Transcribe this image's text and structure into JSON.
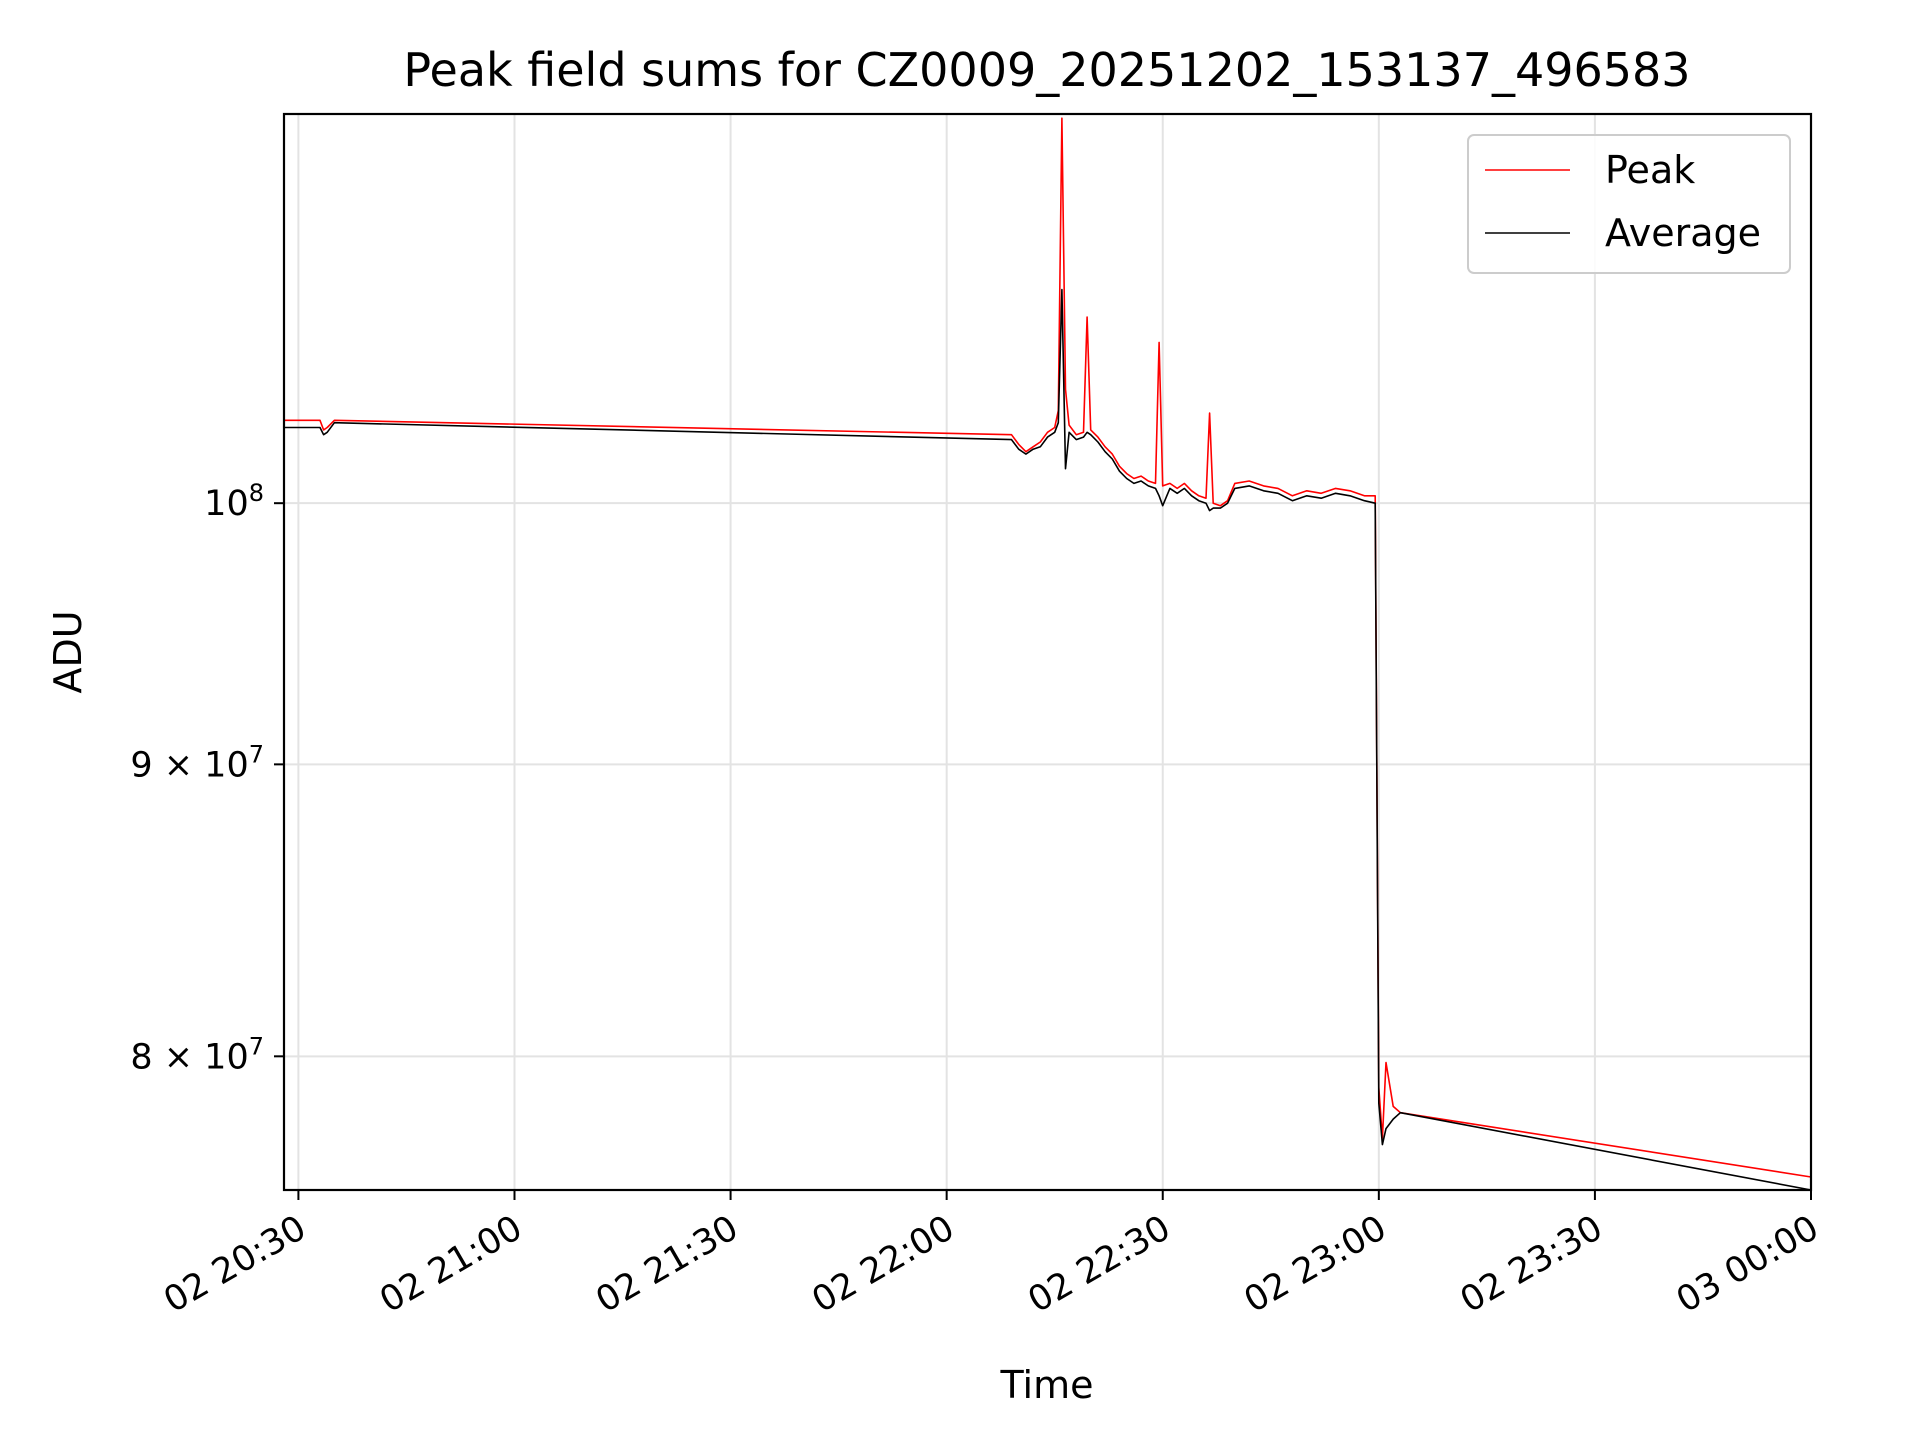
{
  "chart_data": {
    "type": "line",
    "title": "Peak field sums for CZ0009_20251202_153137_496583",
    "xlabel": "Time",
    "ylabel": "ADU",
    "yscale": "log",
    "grid": true,
    "legend_position": "top-right",
    "xlim": [
      "2025-12-02 20:28",
      "2025-12-03 00:00"
    ],
    "ylim": [
      75800000,
      117000000
    ],
    "x_ticks": [
      {
        "t": "2025-12-02 20:30",
        "label": "02 20:30"
      },
      {
        "t": "2025-12-02 21:00",
        "label": "02 21:00"
      },
      {
        "t": "2025-12-02 21:30",
        "label": "02 21:30"
      },
      {
        "t": "2025-12-02 22:00",
        "label": "02 22:00"
      },
      {
        "t": "2025-12-02 22:30",
        "label": "02 22:30"
      },
      {
        "t": "2025-12-02 23:00",
        "label": "02 23:00"
      },
      {
        "t": "2025-12-02 23:30",
        "label": "02 23:30"
      },
      {
        "t": "2025-12-03 00:00",
        "label": "03 00:00"
      }
    ],
    "y_ticks": [
      {
        "value": 100000000,
        "base": "10",
        "exp": "8"
      },
      {
        "value": 90000000,
        "base": "9 × 10",
        "exp": "7"
      },
      {
        "value": 80000000,
        "base": "8 × 10",
        "exp": "7"
      }
    ],
    "series": [
      {
        "name": "Peak",
        "color": "#ff0000",
        "points": [
          [
            "2025-12-02 20:28",
            103400000
          ],
          [
            "2025-12-02 20:33",
            103400000
          ],
          [
            "2025-12-02 20:33:30",
            103000000
          ],
          [
            "2025-12-02 20:34",
            103100000
          ],
          [
            "2025-12-02 20:35",
            103400000
          ],
          [
            "2025-12-02 22:09",
            102800000
          ],
          [
            "2025-12-02 22:10",
            102400000
          ],
          [
            "2025-12-02 22:11",
            102100000
          ],
          [
            "2025-12-02 22:12",
            102300000
          ],
          [
            "2025-12-02 22:13",
            102500000
          ],
          [
            "2025-12-02 22:14",
            102900000
          ],
          [
            "2025-12-02 22:15",
            103100000
          ],
          [
            "2025-12-02 22:15:30",
            103800000
          ],
          [
            "2025-12-02 22:16",
            116800000
          ],
          [
            "2025-12-02 22:16:30",
            104700000
          ],
          [
            "2025-12-02 22:17",
            103200000
          ],
          [
            "2025-12-02 22:18",
            102800000
          ],
          [
            "2025-12-02 22:19",
            102900000
          ],
          [
            "2025-12-02 22:19:30",
            107800000
          ],
          [
            "2025-12-02 22:20",
            103000000
          ],
          [
            "2025-12-02 22:21",
            102700000
          ],
          [
            "2025-12-02 22:22",
            102300000
          ],
          [
            "2025-12-02 22:23",
            102000000
          ],
          [
            "2025-12-02 22:24",
            101500000
          ],
          [
            "2025-12-02 22:25",
            101200000
          ],
          [
            "2025-12-02 22:26",
            101000000
          ],
          [
            "2025-12-02 22:27",
            101100000
          ],
          [
            "2025-12-02 22:28",
            100900000
          ],
          [
            "2025-12-02 22:29",
            100800000
          ],
          [
            "2025-12-02 22:29:30",
            106700000
          ],
          [
            "2025-12-02 22:30",
            100700000
          ],
          [
            "2025-12-02 22:31",
            100800000
          ],
          [
            "2025-12-02 22:32",
            100600000
          ],
          [
            "2025-12-02 22:33",
            100800000
          ],
          [
            "2025-12-02 22:34",
            100500000
          ],
          [
            "2025-12-02 22:35",
            100300000
          ],
          [
            "2025-12-02 22:36",
            100200000
          ],
          [
            "2025-12-02 22:36:30",
            103700000
          ],
          [
            "2025-12-02 22:37",
            100000000
          ],
          [
            "2025-12-02 22:38",
            99900000
          ],
          [
            "2025-12-02 22:39",
            100100000
          ],
          [
            "2025-12-02 22:40",
            100800000
          ],
          [
            "2025-12-02 22:42",
            100900000
          ],
          [
            "2025-12-02 22:44",
            100700000
          ],
          [
            "2025-12-02 22:46",
            100600000
          ],
          [
            "2025-12-02 22:48",
            100300000
          ],
          [
            "2025-12-02 22:50",
            100500000
          ],
          [
            "2025-12-02 22:52",
            100400000
          ],
          [
            "2025-12-02 22:54",
            100600000
          ],
          [
            "2025-12-02 22:56",
            100500000
          ],
          [
            "2025-12-02 22:58",
            100300000
          ],
          [
            "2025-12-02 22:59:30",
            100300000
          ],
          [
            "2025-12-02 23:00",
            79000000
          ],
          [
            "2025-12-02 23:00:30",
            77400000
          ],
          [
            "2025-12-02 23:01",
            79800000
          ],
          [
            "2025-12-02 23:02",
            78400000
          ],
          [
            "2025-12-02 23:03",
            78200000
          ],
          [
            "2025-12-03 00:00",
            76200000
          ]
        ]
      },
      {
        "name": "Average",
        "color": "#000000",
        "points": [
          [
            "2025-12-02 20:28",
            103100000
          ],
          [
            "2025-12-02 20:33",
            103100000
          ],
          [
            "2025-12-02 20:33:30",
            102800000
          ],
          [
            "2025-12-02 20:34",
            102900000
          ],
          [
            "2025-12-02 20:35",
            103300000
          ],
          [
            "2025-12-02 22:09",
            102600000
          ],
          [
            "2025-12-02 22:10",
            102200000
          ],
          [
            "2025-12-02 22:11",
            102000000
          ],
          [
            "2025-12-02 22:12",
            102200000
          ],
          [
            "2025-12-02 22:13",
            102300000
          ],
          [
            "2025-12-02 22:14",
            102700000
          ],
          [
            "2025-12-02 22:15",
            102900000
          ],
          [
            "2025-12-02 22:15:30",
            103300000
          ],
          [
            "2025-12-02 22:16",
            109000000
          ],
          [
            "2025-12-02 22:16:30",
            101400000
          ],
          [
            "2025-12-02 22:17",
            102900000
          ],
          [
            "2025-12-02 22:18",
            102600000
          ],
          [
            "2025-12-02 22:19",
            102700000
          ],
          [
            "2025-12-02 22:19:30",
            102900000
          ],
          [
            "2025-12-02 22:20",
            102800000
          ],
          [
            "2025-12-02 22:21",
            102500000
          ],
          [
            "2025-12-02 22:22",
            102100000
          ],
          [
            "2025-12-02 22:23",
            101800000
          ],
          [
            "2025-12-02 22:24",
            101300000
          ],
          [
            "2025-12-02 22:25",
            101000000
          ],
          [
            "2025-12-02 22:26",
            100800000
          ],
          [
            "2025-12-02 22:27",
            100900000
          ],
          [
            "2025-12-02 22:28",
            100700000
          ],
          [
            "2025-12-02 22:29",
            100600000
          ],
          [
            "2025-12-02 22:29:30",
            100300000
          ],
          [
            "2025-12-02 22:30",
            99900000
          ],
          [
            "2025-12-02 22:31",
            100600000
          ],
          [
            "2025-12-02 22:32",
            100400000
          ],
          [
            "2025-12-02 22:33",
            100600000
          ],
          [
            "2025-12-02 22:34",
            100300000
          ],
          [
            "2025-12-02 22:35",
            100100000
          ],
          [
            "2025-12-02 22:36",
            100000000
          ],
          [
            "2025-12-02 22:36:30",
            99700000
          ],
          [
            "2025-12-02 22:37",
            99800000
          ],
          [
            "2025-12-02 22:38",
            99800000
          ],
          [
            "2025-12-02 22:39",
            100000000
          ],
          [
            "2025-12-02 22:40",
            100600000
          ],
          [
            "2025-12-02 22:42",
            100700000
          ],
          [
            "2025-12-02 22:44",
            100500000
          ],
          [
            "2025-12-02 22:46",
            100400000
          ],
          [
            "2025-12-02 22:48",
            100100000
          ],
          [
            "2025-12-02 22:50",
            100300000
          ],
          [
            "2025-12-02 22:52",
            100200000
          ],
          [
            "2025-12-02 22:54",
            100400000
          ],
          [
            "2025-12-02 22:56",
            100300000
          ],
          [
            "2025-12-02 22:58",
            100100000
          ],
          [
            "2025-12-02 22:59:30",
            100000000
          ],
          [
            "2025-12-02 23:00",
            78500000
          ],
          [
            "2025-12-02 23:00:30",
            77200000
          ],
          [
            "2025-12-02 23:01",
            77700000
          ],
          [
            "2025-12-02 23:02",
            78000000
          ],
          [
            "2025-12-02 23:03",
            78200000
          ],
          [
            "2025-12-03 00:00",
            75800000
          ]
        ]
      }
    ]
  }
}
